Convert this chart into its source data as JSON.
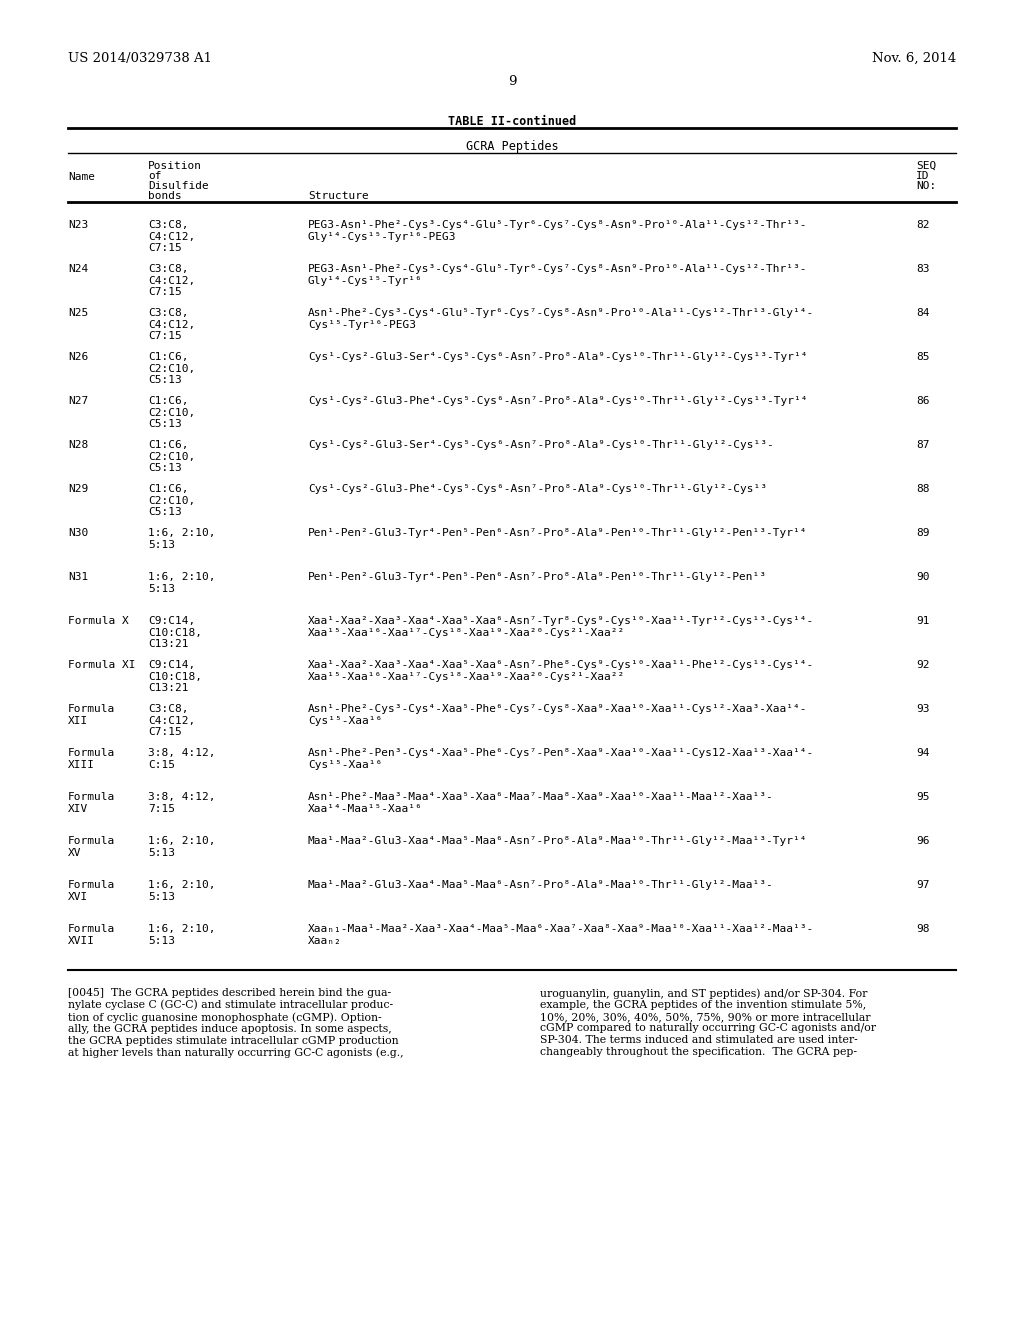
{
  "patent_left": "US 2014/0329738 A1",
  "patent_right": "Nov. 6, 2014",
  "page_number": "9",
  "table_title": "TABLE II-continued",
  "table_subtitle": "GCRA Peptides",
  "col_headers": {
    "name": "Name",
    "position": "Position\nof\nDisulfide\nbonds",
    "structure": "Structure",
    "seq": "SEQ\nID\nNO:"
  },
  "rows": [
    {
      "name": "N23",
      "position": "C3:C8,\nC4:C12,\nC7:15",
      "structure": "PEG3-Asn¹-Phe²-Cys³-Cys⁴-Glu⁵-Tyr⁶-Cys⁷-Cys⁸-Asn⁹-Pro¹⁰-Ala¹¹-Cys¹²-Thr¹³-\nGly¹⁴-Cys¹⁵-Tyr¹⁶-PEG3",
      "seq": "82"
    },
    {
      "name": "N24",
      "position": "C3:C8,\nC4:C12,\nC7:15",
      "structure": "PEG3-Asn¹-Phe²-Cys³-Cys⁴-Glu⁵-Tyr⁶-Cys⁷-Cys⁸-Asn⁹-Pro¹⁰-Ala¹¹-Cys¹²-Thr¹³-\nGly¹⁴-Cys¹⁵-Tyr¹⁶",
      "seq": "83"
    },
    {
      "name": "N25",
      "position": "C3:C8,\nC4:C12,\nC7:15",
      "structure": "Asn¹-Phe²-Cys³-Cys⁴-Glu⁵-Tyr⁶-Cys⁷-Cys⁸-Asn⁹-Pro¹⁰-Ala¹¹-Cys¹²-Thr¹³-Gly¹⁴-\nCys¹⁵-Tyr¹⁶-PEG3",
      "seq": "84"
    },
    {
      "name": "N26",
      "position": "C1:C6,\nC2:C10,\nC5:13",
      "structure": "Cys¹-Cys²-Glu3-Ser⁴-Cys⁵-Cys⁶-Asn⁷-Pro⁸-Ala⁹-Cys¹⁰-Thr¹¹-Gly¹²-Cys¹³-Tyr¹⁴",
      "seq": "85"
    },
    {
      "name": "N27",
      "position": "C1:C6,\nC2:C10,\nC5:13",
      "structure": "Cys¹-Cys²-Glu3-Phe⁴-Cys⁵-Cys⁶-Asn⁷-Pro⁸-Ala⁹-Cys¹⁰-Thr¹¹-Gly¹²-Cys¹³-Tyr¹⁴",
      "seq": "86"
    },
    {
      "name": "N28",
      "position": "C1:C6,\nC2:C10,\nC5:13",
      "structure": "Cys¹-Cys²-Glu3-Ser⁴-Cys⁵-Cys⁶-Asn⁷-Pro⁸-Ala⁹-Cys¹⁰-Thr¹¹-Gly¹²-Cys¹³-",
      "seq": "87"
    },
    {
      "name": "N29",
      "position": "C1:C6,\nC2:C10,\nC5:13",
      "structure": "Cys¹-Cys²-Glu3-Phe⁴-Cys⁵-Cys⁶-Asn⁷-Pro⁸-Ala⁹-Cys¹⁰-Thr¹¹-Gly¹²-Cys¹³",
      "seq": "88"
    },
    {
      "name": "N30",
      "position": "1:6, 2:10,\n5:13",
      "structure": "Pen¹-Pen²-Glu3-Tyr⁴-Pen⁵-Pen⁶-Asn⁷-Pro⁸-Ala⁹-Pen¹⁰-Thr¹¹-Gly¹²-Pen¹³-Tyr¹⁴",
      "seq": "89"
    },
    {
      "name": "N31",
      "position": "1:6, 2:10,\n5:13",
      "structure": "Pen¹-Pen²-Glu3-Tyr⁴-Pen⁵-Pen⁶-Asn⁷-Pro⁸-Ala⁹-Pen¹⁰-Thr¹¹-Gly¹²-Pen¹³",
      "seq": "90"
    },
    {
      "name": "Formula X",
      "position": "C9:C14,\nC10:C18,\nC13:21",
      "structure": "Xaa¹-Xaa²-Xaa³-Xaa⁴-Xaa⁵-Xaa⁶-Asn⁷-Tyr⁸-Cys⁹-Cys¹⁰-Xaa¹¹-Tyr¹²-Cys¹³-Cys¹⁴-\nXaa¹⁵-Xaa¹⁶-Xaa¹⁷-Cys¹⁸-Xaa¹⁹-Xaa²⁰-Cys²¹-Xaa²²",
      "seq": "91"
    },
    {
      "name": "Formula XI",
      "position": "C9:C14,\nC10:C18,\nC13:21",
      "structure": "Xaa¹-Xaa²-Xaa³-Xaa⁴-Xaa⁵-Xaa⁶-Asn⁷-Phe⁸-Cys⁹-Cys¹⁰-Xaa¹¹-Phe¹²-Cys¹³-Cys¹⁴-\nXaa¹⁵-Xaa¹⁶-Xaa¹⁷-Cys¹⁸-Xaa¹⁹-Xaa²⁰-Cys²¹-Xaa²²",
      "seq": "92"
    },
    {
      "name": "Formula\nXII",
      "position": "C3:C8,\nC4:C12,\nC7:15",
      "structure": "Asn¹-Phe²-Cys³-Cys⁴-Xaa⁵-Phe⁶-Cys⁷-Cys⁸-Xaa⁹-Xaa¹⁰-Xaa¹¹-Cys¹²-Xaa³-Xaa¹⁴-\nCys¹⁵-Xaa¹⁶",
      "seq": "93"
    },
    {
      "name": "Formula\nXIII",
      "position": "3:8, 4:12,\nC:15",
      "structure": "Asn¹-Phe²-Pen³-Cys⁴-Xaa⁵-Phe⁶-Cys⁷-Pen⁸-Xaa⁹-Xaa¹⁰-Xaa¹¹-Cys12-Xaa¹³-Xaa¹⁴-\nCys¹⁵-Xaa¹⁶",
      "seq": "94"
    },
    {
      "name": "Formula\nXIV",
      "position": "3:8, 4:12,\n7:15",
      "structure": "Asn¹-Phe²-Maa³-Maa⁴-Xaa⁵-Xaa⁶-Maa⁷-Maa⁸-Xaa⁹-Xaa¹⁰-Xaa¹¹-Maa¹²-Xaa¹³-\nXaa¹⁴-Maa¹⁵-Xaa¹⁶",
      "seq": "95"
    },
    {
      "name": "Formula\nXV",
      "position": "1:6, 2:10,\n5:13",
      "structure": "Maa¹-Maa²-Glu3-Xaa⁴-Maa⁵-Maa⁶-Asn⁷-Pro⁸-Ala⁹-Maa¹⁰-Thr¹¹-Gly¹²-Maa¹³-Tyr¹⁴",
      "seq": "96"
    },
    {
      "name": "Formula\nXVI",
      "position": "1:6, 2:10,\n5:13",
      "structure": "Maa¹-Maa²-Glu3-Xaa⁴-Maa⁵-Maa⁶-Asn⁷-Pro⁸-Ala⁹-Maa¹⁰-Thr¹¹-Gly¹²-Maa¹³-",
      "seq": "97"
    },
    {
      "name": "Formula\nXVII",
      "position": "1:6, 2:10,\n5:13",
      "structure": "Xaaₙ₁-Maa¹-Maa²-Xaa³-Xaa⁴-Maa⁵-Maa⁶-Xaa⁷-Xaa⁸-Xaa⁹-Maa¹⁰-Xaa¹¹-Xaa¹²-Maa¹³-\nXaaₙ₂",
      "seq": "98"
    }
  ],
  "footer_left": "[0045]  The GCRA peptides described herein bind the gua-\nnylate cyclase C (GC-C) and stimulate intracellular produc-\ntion of cyclic guanosine monophosphate (cGMP). Option-\nally, the GCRA peptides induce apoptosis. In some aspects,\nthe GCRA peptides stimulate intracellular cGMP production\nat higher levels than naturally occurring GC-C agonists (e.g.,",
  "footer_right": "uroguanylin, guanylin, and ST peptides) and/or SP-304. For\nexample, the GCRA peptides of the invention stimulate 5%,\n10%, 20%, 30%, 40%, 50%, 75%, 90% or more intracellular\ncGMP compared to naturally occurring GC-C agonists and/or\nSP-304. The terms induced and stimulated are used inter-\nchangeably throughout the specification.  The GCRA pep-"
}
